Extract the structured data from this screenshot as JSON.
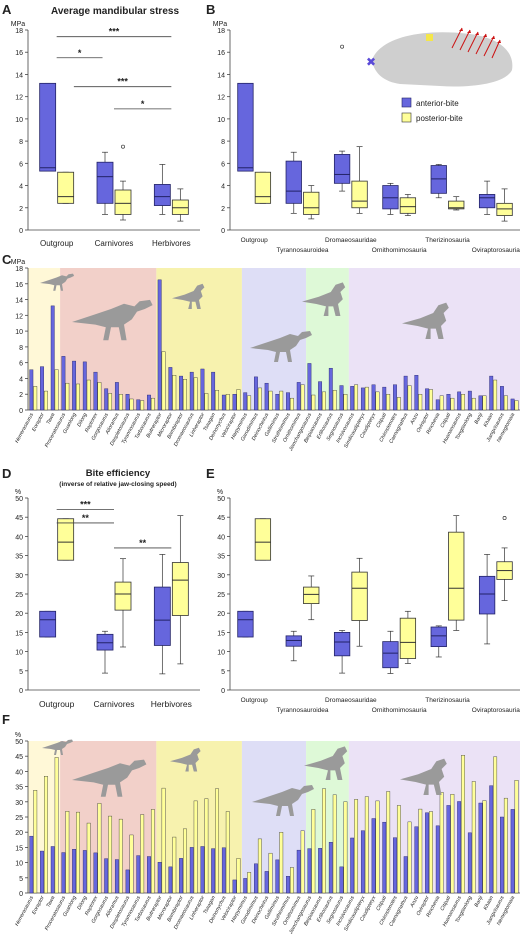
{
  "colors": {
    "anterior": "#6666dd",
    "posterior": "#ffff99",
    "anterior_stroke": "#222266",
    "posterior_stroke": "#333333",
    "outgroup_bg": "#fff7d0",
    "tyranno_bg": "#f0c8c0",
    "dromaeo_bg": "#f6f0a0",
    "ornitho_bg": "#d8d8f4",
    "therizino_bg": "#d8f8d0",
    "ovirapto_bg": "#e8ddf4",
    "silhouette": "#9a9a9a"
  },
  "panels": {
    "A": {
      "letter": "A",
      "title": "Average mandibular stress"
    },
    "B": {
      "letter": "B"
    },
    "C": {
      "letter": "C"
    },
    "D": {
      "letter": "D",
      "title": "Bite efficiency",
      "subtitle": "(inverse of relative jaw-closing speed)"
    },
    "E": {
      "letter": "E"
    },
    "F": {
      "letter": "F"
    }
  },
  "legend": {
    "anterior": "anterior-bite",
    "posterior": "posterior-bite"
  },
  "sig": {
    "A": [
      {
        "from": 0,
        "to": 2,
        "y": 17.4,
        "label": "***"
      },
      {
        "from": 0,
        "to": 0.8,
        "y": 15.5,
        "label": "*"
      },
      {
        "from": 0.3,
        "to": 2,
        "y": 12.9,
        "label": "***"
      },
      {
        "from": 1,
        "to": 2,
        "y": 10.9,
        "label": "*"
      }
    ],
    "D": [
      {
        "from": 0,
        "to": 1,
        "y": 47,
        "label": "***"
      },
      {
        "from": 0,
        "to": 1,
        "y": 43.5,
        "label": "**"
      },
      {
        "from": 1,
        "to": 2,
        "y": 37,
        "label": "**"
      }
    ]
  },
  "chart_data": [
    {
      "id": "A",
      "type": "box",
      "unit": "MPa",
      "ylim": [
        0,
        18
      ],
      "yticks": [
        0,
        2,
        4,
        6,
        8,
        10,
        12,
        14,
        16,
        18
      ],
      "categories": [
        "Outgroup",
        "Carnivores",
        "Herbivores"
      ],
      "series": [
        {
          "name": "anterior-bite",
          "boxes": [
            {
              "min": 5.3,
              "q1": 5.3,
              "med": 5.6,
              "q3": 13.2,
              "max": 13.2,
              "out": []
            },
            {
              "min": 1.4,
              "q1": 2.4,
              "med": 4.8,
              "q3": 6.1,
              "max": 7.0,
              "out": []
            },
            {
              "min": 1.4,
              "q1": 2.2,
              "med": 3.0,
              "q3": 4.1,
              "max": 5.9,
              "out": []
            }
          ]
        },
        {
          "name": "posterior-bite",
          "boxes": [
            {
              "min": 2.4,
              "q1": 2.4,
              "med": 3.0,
              "q3": 5.2,
              "max": 5.2,
              "out": []
            },
            {
              "min": 0.9,
              "q1": 1.4,
              "med": 2.4,
              "q3": 3.6,
              "max": 4.4,
              "out": [
                7.5
              ]
            },
            {
              "min": 0.8,
              "q1": 1.4,
              "med": 2.0,
              "q3": 2.7,
              "max": 3.7,
              "out": []
            }
          ]
        }
      ]
    },
    {
      "id": "B",
      "type": "box",
      "unit": "MPa",
      "ylim": [
        0,
        18
      ],
      "yticks": [
        0,
        2,
        4,
        6,
        8,
        10,
        12,
        14,
        16,
        18
      ],
      "categories": [
        "Outgroup",
        "Tyrannosauroidea",
        "Dromaeosauridae",
        "Ornithomimosauria",
        "Therizinosauria",
        "Oviraptorosauria"
      ],
      "series": [
        {
          "name": "anterior-bite",
          "boxes": [
            {
              "min": 5.3,
              "q1": 5.3,
              "med": 5.6,
              "q3": 13.2,
              "max": 13.2,
              "out": []
            },
            {
              "min": 1.5,
              "q1": 2.4,
              "med": 3.5,
              "q3": 6.2,
              "max": 7.0,
              "out": []
            },
            {
              "min": 3.5,
              "q1": 4.2,
              "med": 5.0,
              "q3": 6.8,
              "max": 7.1,
              "out": [
                16.5
              ]
            },
            {
              "min": 1.4,
              "q1": 1.9,
              "med": 2.9,
              "q3": 4.0,
              "max": 4.2,
              "out": []
            },
            {
              "min": 2.9,
              "q1": 3.3,
              "med": 4.6,
              "q3": 5.8,
              "max": 5.9,
              "out": []
            },
            {
              "min": 1.4,
              "q1": 2.0,
              "med": 2.9,
              "q3": 3.2,
              "max": 4.4,
              "out": []
            }
          ]
        },
        {
          "name": "posterior-bite",
          "boxes": [
            {
              "min": 2.4,
              "q1": 2.4,
              "med": 3.0,
              "q3": 5.2,
              "max": 5.2,
              "out": []
            },
            {
              "min": 1.0,
              "q1": 1.4,
              "med": 2.0,
              "q3": 3.4,
              "max": 4.0,
              "out": []
            },
            {
              "min": 1.5,
              "q1": 2.0,
              "med": 2.6,
              "q3": 4.4,
              "max": 7.5,
              "out": []
            },
            {
              "min": 1.3,
              "q1": 1.5,
              "med": 2.1,
              "q3": 2.9,
              "max": 3.2,
              "out": []
            },
            {
              "min": 1.8,
              "q1": 1.9,
              "med": 2.0,
              "q3": 2.6,
              "max": 3.0,
              "out": []
            },
            {
              "min": 0.8,
              "q1": 1.3,
              "med": 1.9,
              "q3": 2.4,
              "max": 3.7,
              "out": []
            }
          ]
        }
      ]
    },
    {
      "id": "C",
      "type": "bar",
      "unit": "MPa",
      "ylim": [
        0,
        18
      ],
      "yticks": [
        0,
        2,
        4,
        6,
        8,
        10,
        12,
        14,
        16,
        18
      ],
      "categories": [
        "Herrerasaurus",
        "Eoraptor",
        "Tawa",
        "Proceratosaurus",
        "Guanlong",
        "Dilong",
        "Raptorex",
        "Gorgosaurus",
        "Alioramus",
        "Daspletosaurus",
        "Tyrannosaurus",
        "Tarbosaurus",
        "Buitreraptor",
        "Microraptor",
        "Bambiraptor",
        "Dromaeosaurus",
        "Linheraptor",
        "Tsaagan",
        "Deinonychus",
        "Velociraptor",
        "Harpymimus",
        "Garudimimus",
        "Deinocheirus",
        "Gallimimus",
        "Struthiomimus",
        "Ornithomimus",
        "Jianchangosaurus",
        "Beipiaosaurus",
        "Erlikosaurus",
        "Segnosaurus",
        "Incisivosaurus",
        "Similicaudipteryx",
        "Caudipteryx",
        "Citipati",
        "Chirostenotes",
        "Caenagnathus",
        "Anzu",
        "Oviraptor",
        "Rinchenia",
        "Citipati",
        "Huanansaurus",
        "Tongtianlong",
        "Banji",
        "Khaan",
        "Jiangxisaurus",
        "Nemegtomaia"
      ],
      "series": [
        {
          "name": "anterior-bite",
          "values": [
            5.1,
            5.5,
            13.2,
            6.8,
            6.2,
            6.1,
            4.8,
            2.7,
            3.5,
            2.0,
            1.3,
            1.9,
            16.5,
            5.4,
            4.3,
            4.8,
            5.2,
            4.8,
            1.9,
            2.0,
            2.2,
            4.2,
            3.4,
            2.0,
            2.2,
            3.5,
            5.9,
            3.6,
            5.3,
            3.1,
            3.0,
            2.8,
            3.2,
            2.9,
            3.2,
            4.3,
            4.4,
            2.7,
            1.3,
            2.0,
            2.3,
            2.4,
            1.8,
            4.3,
            3.0,
            1.4
          ]
        },
        {
          "name": "posterior-bite",
          "values": [
            3.0,
            2.4,
            5.1,
            3.4,
            3.3,
            3.8,
            3.5,
            2.1,
            2.0,
            1.4,
            1.2,
            1.5,
            7.4,
            4.4,
            3.9,
            4.1,
            2.1,
            2.5,
            2.0,
            2.6,
            1.8,
            2.8,
            2.4,
            2.4,
            1.5,
            3.2,
            1.9,
            2.3,
            2.5,
            2.0,
            3.2,
            2.9,
            2.3,
            2.0,
            1.6,
            3.1,
            2.0,
            2.6,
            1.8,
            1.5,
            2.0,
            1.5,
            1.8,
            3.8,
            1.8,
            1.2
          ]
        }
      ]
    },
    {
      "id": "D",
      "type": "box",
      "unit": "%",
      "ylim": [
        0,
        50
      ],
      "yticks": [
        0,
        5,
        10,
        15,
        20,
        25,
        30,
        35,
        40,
        45,
        50
      ],
      "categories": [
        "Outgroup",
        "Carnivores",
        "Herbivores"
      ],
      "series": [
        {
          "name": "anterior-bite",
          "boxes": [
            {
              "min": 13.8,
              "q1": 13.8,
              "med": 18.3,
              "q3": 20.5,
              "max": 20.5,
              "out": []
            },
            {
              "min": 4.4,
              "q1": 10.4,
              "med": 12.3,
              "q3": 14.5,
              "max": 15.3,
              "out": []
            },
            {
              "min": 4.2,
              "q1": 11.6,
              "med": 18.2,
              "q3": 26.8,
              "max": 35.3,
              "out": []
            }
          ]
        },
        {
          "name": "posterior-bite",
          "boxes": [
            {
              "min": 33.8,
              "q1": 33.8,
              "med": 38.5,
              "q3": 44.6,
              "max": 44.6,
              "out": []
            },
            {
              "min": 11.2,
              "q1": 20.8,
              "med": 25.0,
              "q3": 28.1,
              "max": 34.2,
              "out": []
            },
            {
              "min": 6.8,
              "q1": 19.4,
              "med": 28.6,
              "q3": 33.2,
              "max": 45.4,
              "out": []
            }
          ]
        }
      ]
    },
    {
      "id": "E",
      "type": "box",
      "unit": "%",
      "ylim": [
        0,
        50
      ],
      "yticks": [
        0,
        5,
        10,
        15,
        20,
        25,
        30,
        35,
        40,
        45,
        50
      ],
      "categories": [
        "Outgroup",
        "Tyrannosauroidea",
        "Dromaeosauridae",
        "Ornithomimosauria",
        "Therizinosauria",
        "Oviraptorosauria"
      ],
      "series": [
        {
          "name": "anterior-bite",
          "boxes": [
            {
              "min": 13.8,
              "q1": 13.8,
              "med": 18.3,
              "q3": 20.5,
              "max": 20.5,
              "out": []
            },
            {
              "min": 7.6,
              "q1": 11.4,
              "med": 12.9,
              "q3": 14.1,
              "max": 15.3,
              "out": []
            },
            {
              "min": 4.4,
              "q1": 8.9,
              "med": 12.5,
              "q3": 15.0,
              "max": 15.5,
              "out": []
            },
            {
              "min": 4.3,
              "q1": 5.8,
              "med": 9.6,
              "q3": 12.6,
              "max": 15.3,
              "out": []
            },
            {
              "min": 8.6,
              "q1": 11.3,
              "med": 14.1,
              "q3": 16.4,
              "max": 16.7,
              "out": []
            },
            {
              "min": 12.0,
              "q1": 19.8,
              "med": 25.0,
              "q3": 29.6,
              "max": 35.3,
              "out": []
            }
          ]
        },
        {
          "name": "posterior-bite",
          "boxes": [
            {
              "min": 33.8,
              "q1": 33.8,
              "med": 38.5,
              "q3": 44.6,
              "max": 44.6,
              "out": []
            },
            {
              "min": 18.3,
              "q1": 22.5,
              "med": 24.9,
              "q3": 26.8,
              "max": 29.7,
              "out": []
            },
            {
              "min": 11.4,
              "q1": 18.1,
              "med": 26.5,
              "q3": 30.7,
              "max": 34.3,
              "out": []
            },
            {
              "min": 6.9,
              "q1": 8.2,
              "med": 12.4,
              "q3": 18.7,
              "max": 20.5,
              "out": []
            },
            {
              "min": 15.5,
              "q1": 18.2,
              "med": 26.5,
              "q3": 41.1,
              "max": 45.4,
              "out": []
            },
            {
              "min": 23.3,
              "q1": 28.8,
              "med": 31.1,
              "q3": 33.4,
              "max": 37.0,
              "out": [
                44.8
              ]
            }
          ]
        }
      ]
    },
    {
      "id": "F",
      "type": "bar",
      "unit": "%",
      "ylim": [
        0,
        50
      ],
      "yticks": [
        0,
        5,
        10,
        15,
        20,
        25,
        30,
        35,
        40,
        45,
        50
      ],
      "categories": [
        "Herrerasaurus",
        "Eoraptor",
        "Tawa",
        "Proceratosaurus",
        "Guanlong",
        "Dilong",
        "Raptorex",
        "Gorgosaurus",
        "Alioramus",
        "Daspletosaurus",
        "Tyrannosaurus",
        "Tarbosaurus",
        "Buitreraptor",
        "Microraptor",
        "Bambiraptor",
        "Dromaeosaurus",
        "Linheraptor",
        "Tsaagan",
        "Deinonychus",
        "Velociraptor",
        "Harpymimus",
        "Garudimimus",
        "Deinocheirus",
        "Gallimimus",
        "Struthiomimus",
        "Ornithomimus",
        "Jianchangosaurus",
        "Beipiaosaurus",
        "Erlikosaurus",
        "Segnosaurus",
        "Incisivosaurus",
        "Similicaudipteryx",
        "Caudipteryx",
        "Citipati",
        "Chirostenotes",
        "Caenagnathus",
        "Anzu",
        "Oviraptor",
        "Rinchenia",
        "Citipati",
        "Huanansaurus",
        "Tongtianlong",
        "Banji",
        "Khaan",
        "Jiangxisaurus",
        "Nemegtomaia"
      ],
      "series": [
        {
          "name": "anterior-bite",
          "values": [
            18.7,
            13.8,
            15.3,
            13.3,
            14.4,
            14.0,
            13.2,
            11.3,
            11.0,
            7.6,
            12.3,
            12.0,
            10.1,
            8.6,
            11.4,
            15.0,
            15.3,
            14.6,
            14.9,
            4.3,
            4.8,
            9.6,
            7.1,
            10.9,
            5.5,
            14.1,
            14.6,
            14.7,
            16.7,
            8.6,
            18.1,
            20.5,
            24.5,
            23.3,
            18.2,
            12.0,
            21.8,
            26.4,
            22.1,
            28.8,
            30.1,
            19.8,
            29.6,
            35.3,
            25.0,
            27.5
          ]
        },
        {
          "name": "posterior-bite",
          "values": [
            33.8,
            38.4,
            44.6,
            26.9,
            26.6,
            23.0,
            29.5,
            25.3,
            24.3,
            19.1,
            25.8,
            27.5,
            34.5,
            18.4,
            21.1,
            30.3,
            31.0,
            34.3,
            26.8,
            11.4,
            6.8,
            17.8,
            13.1,
            20.0,
            8.4,
            20.5,
            27.5,
            34.3,
            32.3,
            30.0,
            30.8,
            31.7,
            30.3,
            33.4,
            28.8,
            23.4,
            27.6,
            26.8,
            33.1,
            32.5,
            45.3,
            36.7,
            30.4,
            44.8,
            31.2,
            37.1
          ]
        }
      ]
    }
  ]
}
